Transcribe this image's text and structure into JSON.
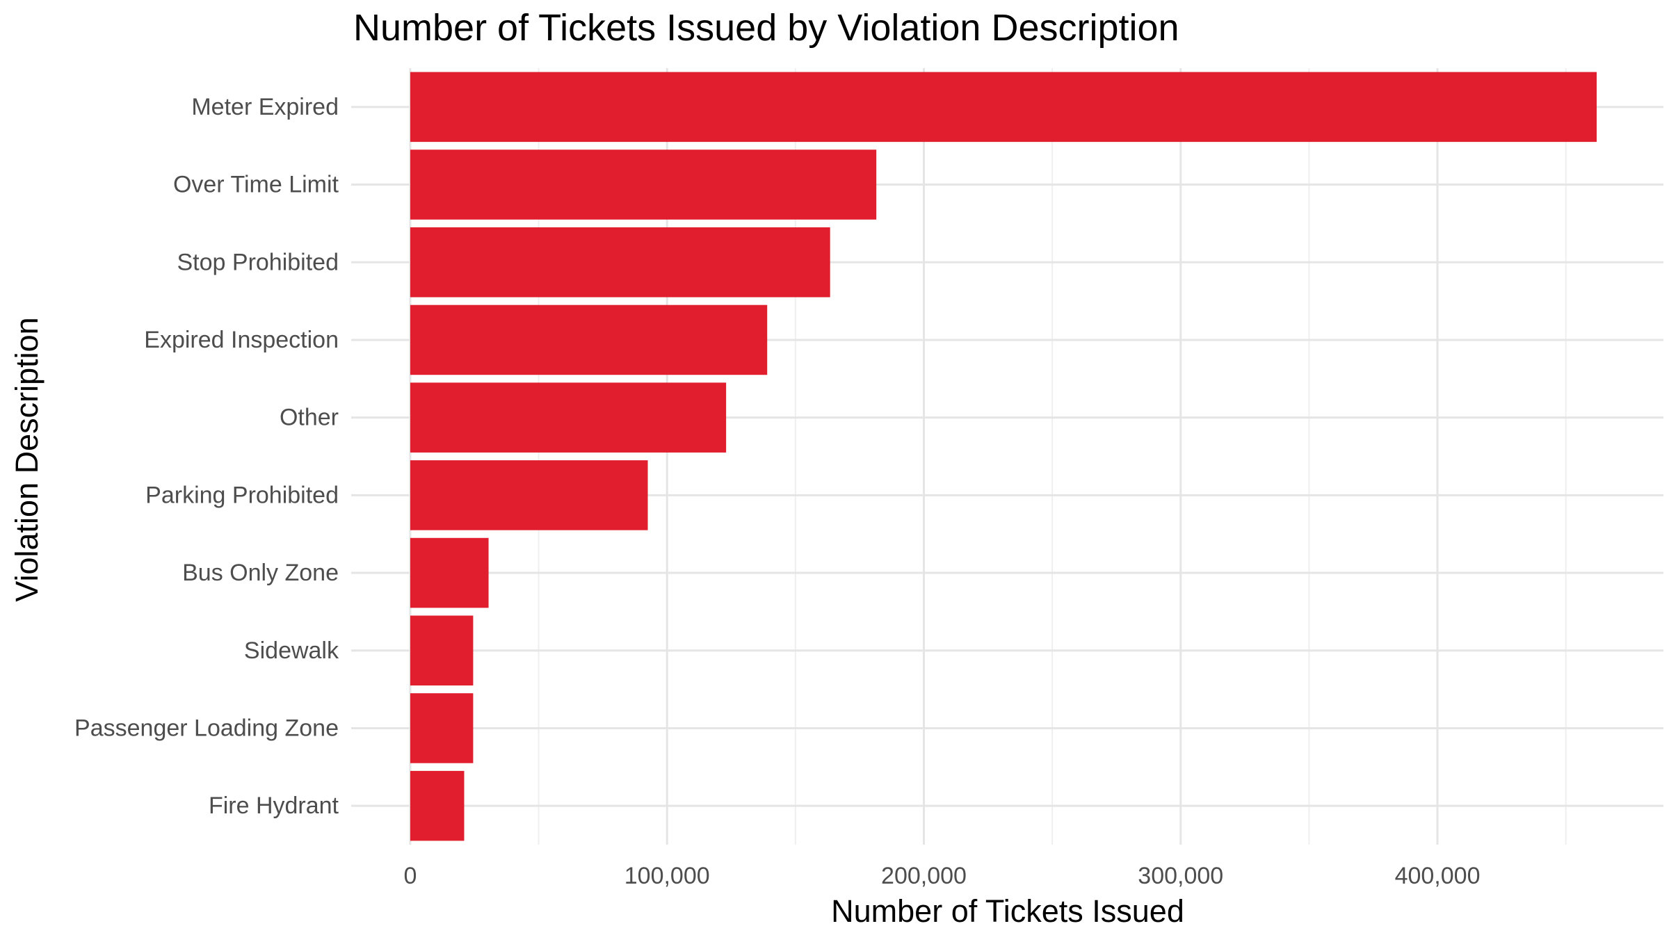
{
  "chart_data": {
    "type": "bar",
    "orientation": "horizontal",
    "title": "Number of Tickets Issued by Violation Description",
    "xlabel": "Number of Tickets Issued",
    "ylabel": "Violation Description",
    "categories": [
      "Meter Expired",
      "Over Time Limit",
      "Stop Prohibited",
      "Expired Inspection",
      "Other",
      "Parking Prohibited",
      "Bus Only Zone",
      "Sidewalk",
      "Passenger Loading Zone",
      "Fire Hydrant"
    ],
    "values": [
      462000,
      181500,
      163500,
      139000,
      123000,
      92500,
      30500,
      24500,
      24500,
      21000
    ],
    "xlim": [
      -23000,
      488000
    ],
    "x_major_ticks": [
      0,
      100000,
      200000,
      300000,
      400000
    ],
    "x_tick_labels": [
      "0",
      "100,000",
      "200,000",
      "300,000",
      "400,000"
    ],
    "x_minor_ticks": [
      50000,
      150000,
      250000,
      350000,
      450000
    ],
    "grid": true,
    "legend": "none",
    "colors": {
      "bar": "#E01E2D",
      "grid_major": "#E5E5E5",
      "grid_minor": "#EFEFEF",
      "title": "#000000",
      "axis_title": "#000000",
      "tick_label": "#4D4D4D"
    }
  }
}
